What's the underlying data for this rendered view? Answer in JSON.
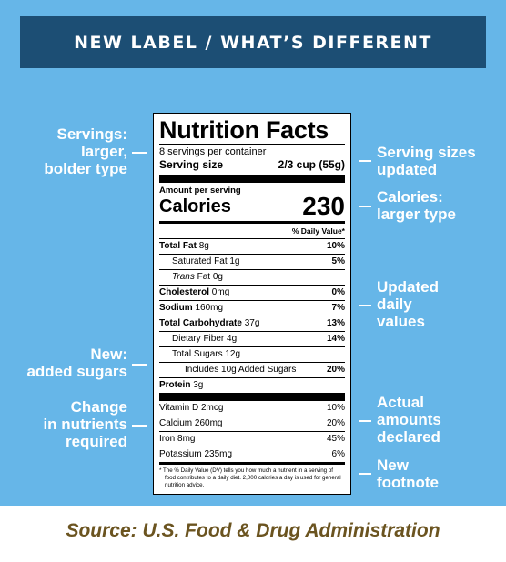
{
  "banner": "NEW LABEL / WHAT’S DIFFERENT",
  "callouts_left": [
    {
      "lines": [
        "Servings:",
        "larger,",
        "bolder type"
      ]
    },
    {
      "lines": [
        "New:",
        "added sugars"
      ]
    },
    {
      "lines": [
        "Change",
        "in nutrients",
        "required"
      ]
    }
  ],
  "callouts_right": [
    {
      "lines": [
        "Serving sizes",
        "updated"
      ]
    },
    {
      "lines": [
        "Calories:",
        "larger type"
      ]
    },
    {
      "lines": [
        "Updated",
        "daily",
        "values"
      ]
    },
    {
      "lines": [
        "Actual",
        "amounts",
        "declared"
      ]
    },
    {
      "lines": [
        "New",
        "footnote"
      ]
    }
  ],
  "label": {
    "title": "Nutrition Facts",
    "servings": "8 servings per container",
    "serving_size_label": "Serving size",
    "serving_size_value": "2/3 cup (55g)",
    "amount_per_serving": "Amount per serving",
    "calories_label": "Calories",
    "calories_value": "230",
    "dv_header": "% Daily Value*",
    "nutrients": [
      {
        "name": "Total Fat",
        "amount": "8g",
        "dv": "10%"
      },
      {
        "name": "Saturated Fat",
        "amount": "1g",
        "dv": "5%"
      },
      {
        "name": "Trans",
        "amount": "Fat 0g",
        "dv": ""
      },
      {
        "name": "Cholesterol",
        "amount": "0mg",
        "dv": "0%"
      },
      {
        "name": "Sodium",
        "amount": "160mg",
        "dv": "7%"
      },
      {
        "name": "Total Carbohydrate",
        "amount": "37g",
        "dv": "13%"
      },
      {
        "name": "Dietary Fiber",
        "amount": "4g",
        "dv": "14%"
      },
      {
        "name": "Total Sugars",
        "amount": "12g",
        "dv": ""
      },
      {
        "name": "Includes 10g Added Sugars",
        "amount": "",
        "dv": "20%"
      },
      {
        "name": "Protein",
        "amount": "3g",
        "dv": ""
      }
    ],
    "vitamins": [
      {
        "text": "Vitamin D 2mcg",
        "dv": "10%"
      },
      {
        "text": "Calcium 260mg",
        "dv": "20%"
      },
      {
        "text": "Iron 8mg",
        "dv": "45%"
      },
      {
        "text": "Potassium 235mg",
        "dv": "6%"
      }
    ],
    "footnote": "* The % Daily Value (DV) tells you how much a nutrient in a serving of food contributes to a daily diet. 2,000 calories a day is used for general nutrition advice."
  },
  "source": "Source: U.S. Food & Drug Administration"
}
